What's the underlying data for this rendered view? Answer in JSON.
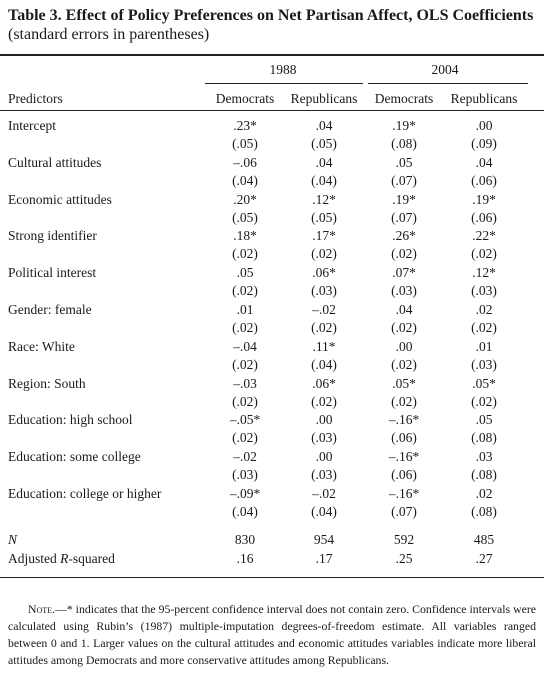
{
  "title": {
    "bold": "Table 3. Effect of Policy Preferences on Net Partisan Affect, OLS Coefficients",
    "normal": " (standard errors in parentheses)"
  },
  "years": [
    "1988",
    "2004"
  ],
  "columns": [
    "Democrats",
    "Republicans",
    "Democrats",
    "Republicans"
  ],
  "predictors_label": "Predictors",
  "rows": [
    {
      "label": "Intercept",
      "coef": [
        ".23*",
        ".04",
        ".19*",
        ".00"
      ],
      "se": [
        "(.05)",
        "(.05)",
        "(.08)",
        "(.09)"
      ]
    },
    {
      "label": "Cultural attitudes",
      "coef": [
        "–.06",
        ".04",
        ".05",
        ".04"
      ],
      "se": [
        "(.04)",
        "(.04)",
        "(.07)",
        "(.06)"
      ]
    },
    {
      "label": "Economic attitudes",
      "coef": [
        ".20*",
        ".12*",
        ".19*",
        ".19*"
      ],
      "se": [
        "(.05)",
        "(.05)",
        "(.07)",
        "(.06)"
      ]
    },
    {
      "label": "Strong identifier",
      "coef": [
        ".18*",
        ".17*",
        ".26*",
        ".22*"
      ],
      "se": [
        "(.02)",
        "(.02)",
        "(.02)",
        "(.02)"
      ]
    },
    {
      "label": "Political interest",
      "coef": [
        ".05",
        ".06*",
        ".07*",
        ".12*"
      ],
      "se": [
        "(.02)",
        "(.03)",
        "(.03)",
        "(.03)"
      ]
    },
    {
      "label": "Gender: female",
      "coef": [
        ".01",
        "–.02",
        ".04",
        ".02"
      ],
      "se": [
        "(.02)",
        "(.02)",
        "(.02)",
        "(.02)"
      ]
    },
    {
      "label": "Race: White",
      "coef": [
        "–.04",
        ".11*",
        ".00",
        ".01"
      ],
      "se": [
        "(.02)",
        "(.04)",
        "(.02)",
        "(.03)"
      ]
    },
    {
      "label": "Region: South",
      "coef": [
        "–.03",
        ".06*",
        ".05*",
        ".05*"
      ],
      "se": [
        "(.02)",
        "(.02)",
        "(.02)",
        "(.02)"
      ]
    },
    {
      "label": "Education: high school",
      "coef": [
        "–.05*",
        ".00",
        "–.16*",
        ".05"
      ],
      "se": [
        "(.02)",
        "(.03)",
        "(.06)",
        "(.08)"
      ]
    },
    {
      "label": "Education: some college",
      "coef": [
        "–.02",
        ".00",
        "–.16*",
        ".03"
      ],
      "se": [
        "(.03)",
        "(.03)",
        "(.06)",
        "(.08)"
      ]
    },
    {
      "label": "Education: college or higher",
      "coef": [
        "–.09*",
        "–.02",
        "–.16*",
        ".02"
      ],
      "se": [
        "(.04)",
        "(.04)",
        "(.07)",
        "(.08)"
      ]
    }
  ],
  "n": {
    "label": "N",
    "values": [
      "830",
      "954",
      "592",
      "485"
    ]
  },
  "r2": {
    "label_prefix": "Adjusted ",
    "label_italic": "R",
    "label_suffix": "-squared",
    "values": [
      ".16",
      ".17",
      ".25",
      ".27"
    ]
  },
  "note": {
    "lead": "Note.",
    "text": "—* indicates that the 95-percent confidence interval does not contain zero. Confidence intervals were calculated using Rubin’s (1987) multiple-imputation degrees-of-freedom estimate. All variables ranged between 0 and 1. Larger values on the cultural attitudes and economic attitudes variables indicate more liberal attitudes among Democrats and more conservative attitudes among Republicans."
  }
}
